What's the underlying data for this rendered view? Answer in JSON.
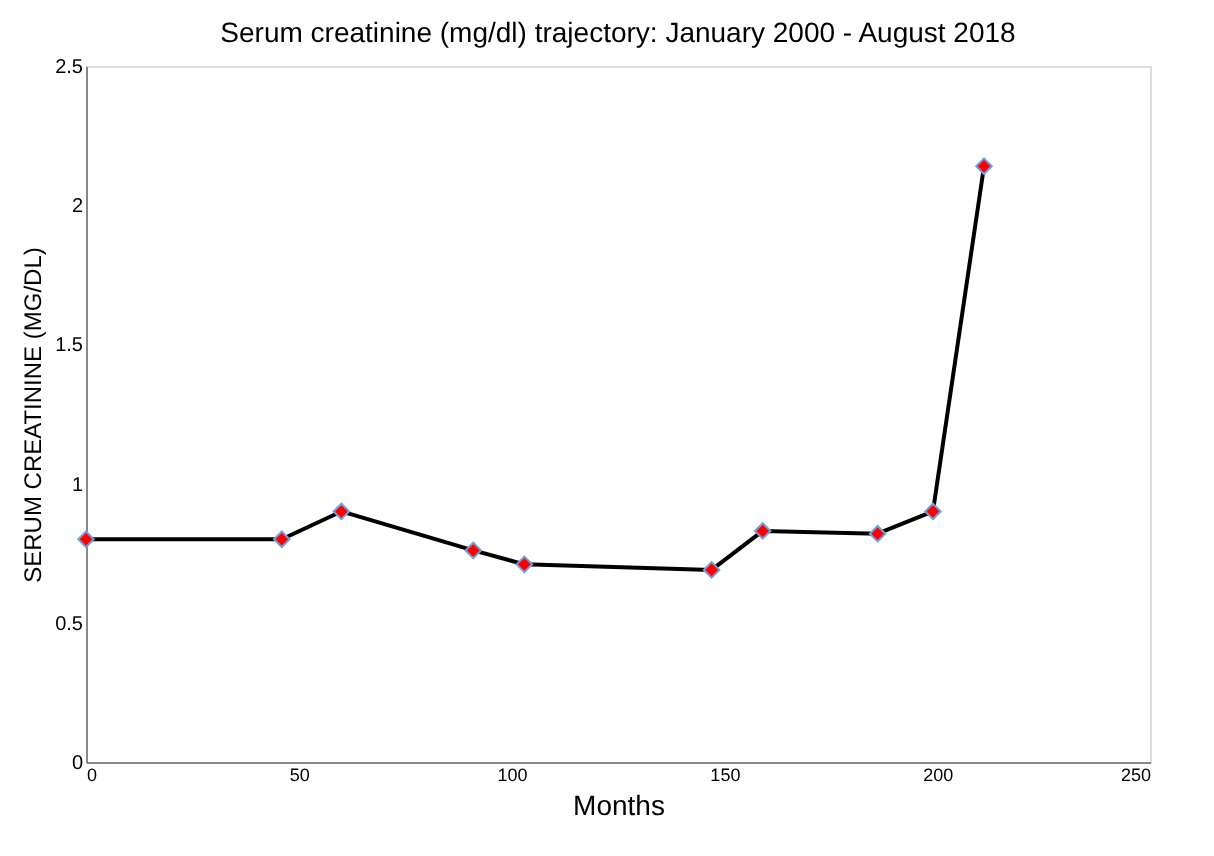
{
  "chart_data": {
    "type": "line",
    "title": "Serum creatinine (mg/dl) trajectory: January 2000 - August 2018",
    "xlabel": "Months",
    "ylabel": "SERUM CREATININE (MG/DL)",
    "x": [
      0,
      46,
      60,
      91,
      103,
      147,
      159,
      186,
      199,
      211
    ],
    "series": [
      {
        "color": "#000000",
        "values": [
          0.8,
          0.8,
          0.9,
          0.76,
          0.71,
          0.69,
          0.83,
          0.82,
          0.9,
          2.14
        ]
      }
    ],
    "xlim": [
      0,
      250
    ],
    "xticks": [
      0,
      50,
      100,
      150,
      200,
      250
    ],
    "ylim": [
      0,
      2.5
    ],
    "yticks": [
      0,
      0.5,
      1,
      1.5,
      2,
      2.5
    ],
    "marker": "diamond",
    "line_style": "solid",
    "grid": false
  }
}
